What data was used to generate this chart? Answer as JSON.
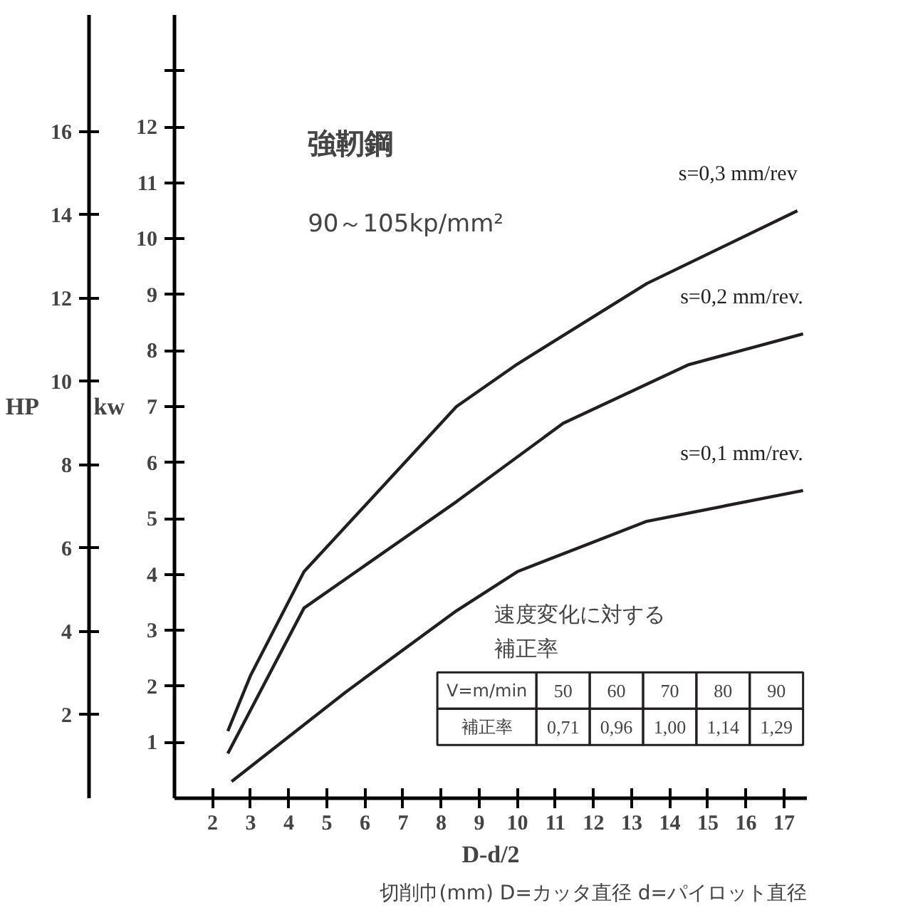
{
  "chart_data": {
    "type": "line",
    "title": "強靭鋼",
    "subtitle": "90～105kp/mm²",
    "xlabel": "D-d/2",
    "ylabel": "kw",
    "y2label": "HP",
    "xlim": [
      1,
      17.6
    ],
    "xticks": [
      2,
      3,
      4,
      5,
      6,
      7,
      8,
      9,
      10,
      11,
      12,
      13,
      14,
      15,
      16,
      17
    ],
    "ylim": [
      0,
      14
    ],
    "yticks": [
      1,
      2,
      3,
      4,
      5,
      6,
      7,
      8,
      9,
      10,
      11,
      12,
      {
        "value": 13,
        "label": null
      }
    ],
    "y2lim": [
      0,
      18.8
    ],
    "y2ticks": [
      2,
      4,
      6,
      8,
      10,
      12,
      14,
      16
    ],
    "grid": false,
    "line_style": "solid",
    "marker": "none",
    "series": [
      {
        "name": "s=0,3 mm/rev",
        "color": "#231f20",
        "x": [
          2.4,
          3.0,
          4.4,
          8.4,
          10.0,
          13.4,
          17.35
        ],
        "values": [
          1.2,
          2.2,
          4.05,
          7.0,
          7.76,
          9.2,
          10.5
        ]
      },
      {
        "name": "s=0,2 mm/rev.",
        "color": "#231f20",
        "x": [
          2.4,
          4.4,
          8.4,
          11.2,
          14.5,
          17.5
        ],
        "values": [
          0.8,
          3.4,
          5.3,
          6.7,
          7.75,
          8.3
        ]
      },
      {
        "name": "s=0,1 mm/rev.",
        "color": "#231f20",
        "x": [
          2.5,
          5.5,
          8.4,
          10.0,
          13.4,
          17.5
        ],
        "values": [
          0.3,
          1.9,
          3.35,
          4.05,
          4.95,
          5.5
        ]
      }
    ],
    "annotations": [
      "切削巾(mm) D=カッタ直径 d=パイロット直径",
      "速度変化に対する",
      "補正率",
      "V=m/min",
      "50",
      "60",
      "70",
      "80",
      "90",
      "補正率",
      "0,71",
      "0,96",
      "1,00",
      "1,14",
      "1,29"
    ]
  }
}
